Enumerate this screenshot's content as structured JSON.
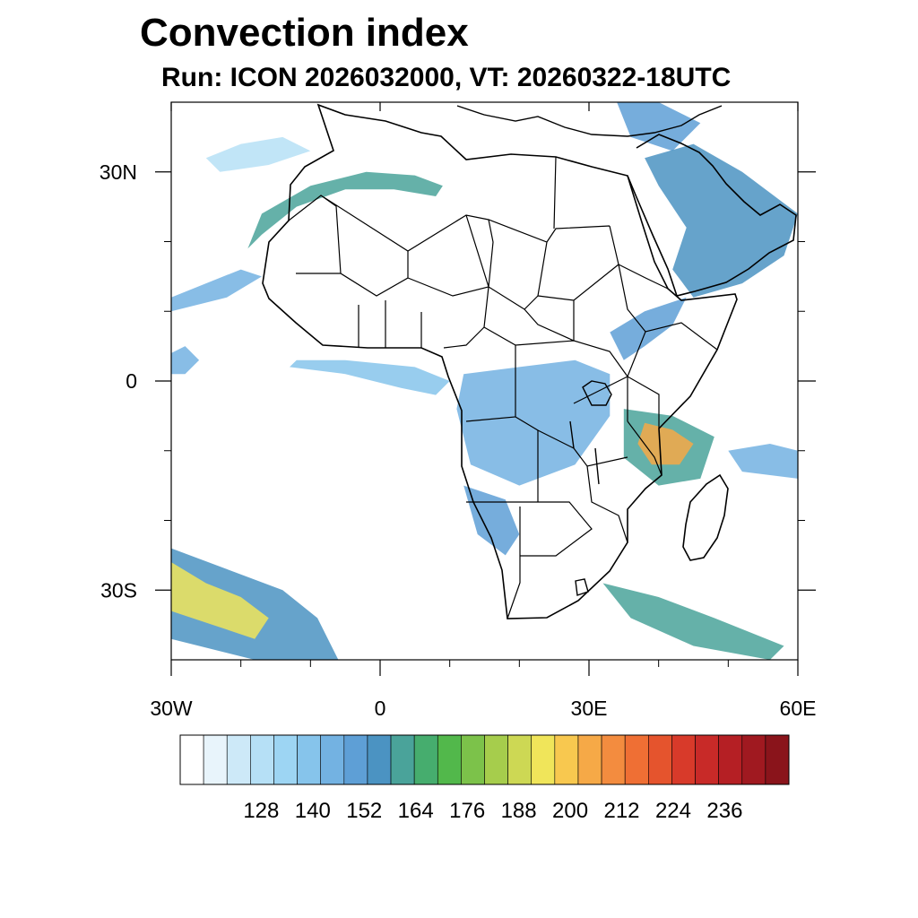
{
  "title": "Convection index",
  "subtitle": "Run: ICON 2026032000,  VT: 20260322-18UTC",
  "map": {
    "lon_range": [
      -30,
      60
    ],
    "lat_range": [
      -40,
      40
    ],
    "x_ticks": [
      {
        "lon": -30,
        "label": "30W"
      },
      {
        "lon": 0,
        "label": "0"
      },
      {
        "lon": 30,
        "label": "30E"
      },
      {
        "lon": 60,
        "label": "60E"
      }
    ],
    "y_ticks": [
      {
        "lat": 30,
        "label": "30N"
      },
      {
        "lat": 0,
        "label": "0"
      },
      {
        "lat": -30,
        "label": "30S"
      }
    ],
    "minor_x_lons": [
      -20,
      -10,
      10,
      20,
      40,
      50
    ],
    "minor_y_lats": [
      20,
      10,
      -10,
      -20
    ]
  },
  "colorbar": {
    "levels": [
      128,
      140,
      152,
      164,
      176,
      188,
      200,
      212,
      224,
      236
    ],
    "colors": [
      "#ffffff",
      "#e8f4fb",
      "#cde9f8",
      "#b6e0f6",
      "#9dd5f3",
      "#86c4eb",
      "#73b2e2",
      "#5e9fd6",
      "#4b93c2",
      "#4aa39a",
      "#46ad6e",
      "#52b84b",
      "#7cc24a",
      "#a6cd4c",
      "#cdd854",
      "#f0e55a",
      "#f8c84f",
      "#f6a947",
      "#f38c3f",
      "#ef6f34",
      "#e5542d",
      "#d83a2a",
      "#c82a28",
      "#b51f24",
      "#a01920",
      "#8a141b"
    ]
  },
  "features": [
    {
      "name": "band-sahara-north",
      "level": 9,
      "points": [
        [
          -17,
          24
        ],
        [
          -10,
          28
        ],
        [
          -2,
          30
        ],
        [
          5,
          29.5
        ],
        [
          9,
          28
        ],
        [
          8,
          26.5
        ],
        [
          2,
          27.5
        ],
        [
          -5,
          27.5
        ],
        [
          -12,
          25
        ],
        [
          -17,
          21
        ],
        [
          -19,
          19
        ]
      ]
    },
    {
      "name": "band-north-atlantic-arc",
      "level": 3,
      "points": [
        [
          -25,
          32
        ],
        [
          -20,
          34
        ],
        [
          -14,
          35
        ],
        [
          -10,
          33
        ],
        [
          -16,
          31
        ],
        [
          -23,
          30
        ]
      ]
    },
    {
      "name": "band-west-atlantic",
      "level": 6,
      "points": [
        [
          -30,
          12
        ],
        [
          -25,
          14
        ],
        [
          -20,
          16
        ],
        [
          -17,
          15
        ],
        [
          -22,
          12
        ],
        [
          -30,
          10
        ]
      ]
    },
    {
      "name": "cluster-equatorial-atlantic",
      "level": 5,
      "points": [
        [
          -13,
          2
        ],
        [
          -5,
          1
        ],
        [
          3,
          -1
        ],
        [
          8,
          -2
        ],
        [
          10,
          0
        ],
        [
          5,
          2
        ],
        [
          -5,
          3
        ],
        [
          -12,
          3
        ]
      ]
    },
    {
      "name": "cluster-west-equator",
      "level": 6,
      "points": [
        [
          -30,
          4
        ],
        [
          -28,
          5
        ],
        [
          -26,
          3
        ],
        [
          -28,
          1
        ],
        [
          -30,
          1
        ]
      ]
    },
    {
      "name": "cluster-congo-basin",
      "level": 6,
      "points": [
        [
          12,
          1
        ],
        [
          20,
          2
        ],
        [
          28,
          3
        ],
        [
          33,
          1
        ],
        [
          33,
          -5
        ],
        [
          28,
          -12
        ],
        [
          20,
          -15
        ],
        [
          13,
          -12
        ],
        [
          11,
          -4
        ]
      ]
    },
    {
      "name": "cluster-east-africa",
      "level": 7,
      "points": [
        [
          33,
          7
        ],
        [
          38,
          10
        ],
        [
          44,
          12
        ],
        [
          42,
          8
        ],
        [
          38,
          5
        ],
        [
          35,
          3
        ]
      ]
    },
    {
      "name": "cluster-mozambique-hot",
      "level": 17,
      "points": [
        [
          38,
          -6
        ],
        [
          42,
          -7
        ],
        [
          45,
          -9
        ],
        [
          43,
          -12
        ],
        [
          39,
          -12
        ],
        [
          37,
          -9
        ]
      ]
    },
    {
      "name": "cluster-mozambique-ring",
      "level": 9,
      "points": [
        [
          35,
          -4
        ],
        [
          42,
          -5
        ],
        [
          48,
          -8
        ],
        [
          46,
          -14
        ],
        [
          40,
          -15
        ],
        [
          35,
          -11
        ]
      ]
    },
    {
      "name": "cluster-arabia",
      "level": 8,
      "points": [
        [
          38,
          32
        ],
        [
          45,
          34
        ],
        [
          52,
          30
        ],
        [
          60,
          24
        ],
        [
          58,
          18
        ],
        [
          52,
          14
        ],
        [
          45,
          12
        ],
        [
          42,
          16
        ],
        [
          44,
          22
        ],
        [
          40,
          28
        ]
      ]
    },
    {
      "name": "cluster-namibia",
      "level": 7,
      "points": [
        [
          12,
          -15
        ],
        [
          18,
          -17
        ],
        [
          20,
          -22
        ],
        [
          18,
          -25
        ],
        [
          14,
          -22
        ]
      ]
    },
    {
      "name": "cluster-south-atlantic-hot",
      "level": 15,
      "points": [
        [
          -30,
          -26
        ],
        [
          -25,
          -29
        ],
        [
          -20,
          -31
        ],
        [
          -16,
          -34
        ],
        [
          -18,
          -37
        ],
        [
          -24,
          -35
        ],
        [
          -30,
          -33
        ]
      ]
    },
    {
      "name": "cluster-south-atlantic-ring",
      "level": 8,
      "points": [
        [
          -30,
          -24
        ],
        [
          -22,
          -27
        ],
        [
          -14,
          -30
        ],
        [
          -9,
          -34
        ],
        [
          -6,
          -40
        ],
        [
          -18,
          -40
        ],
        [
          -30,
          -37
        ]
      ]
    },
    {
      "name": "cluster-south-indian",
      "level": 9,
      "points": [
        [
          32,
          -29
        ],
        [
          40,
          -31
        ],
        [
          48,
          -34
        ],
        [
          58,
          -38
        ],
        [
          56,
          -40
        ],
        [
          45,
          -38
        ],
        [
          36,
          -34
        ]
      ]
    },
    {
      "name": "cluster-east-indian",
      "level": 6,
      "points": [
        [
          50,
          -10
        ],
        [
          56,
          -9
        ],
        [
          60,
          -10
        ],
        [
          60,
          -14
        ],
        [
          52,
          -13
        ]
      ]
    },
    {
      "name": "cluster-mediterranean",
      "level": 7,
      "points": [
        [
          34,
          40
        ],
        [
          40,
          40
        ],
        [
          46,
          37
        ],
        [
          42,
          33
        ],
        [
          36,
          35
        ]
      ]
    }
  ]
}
